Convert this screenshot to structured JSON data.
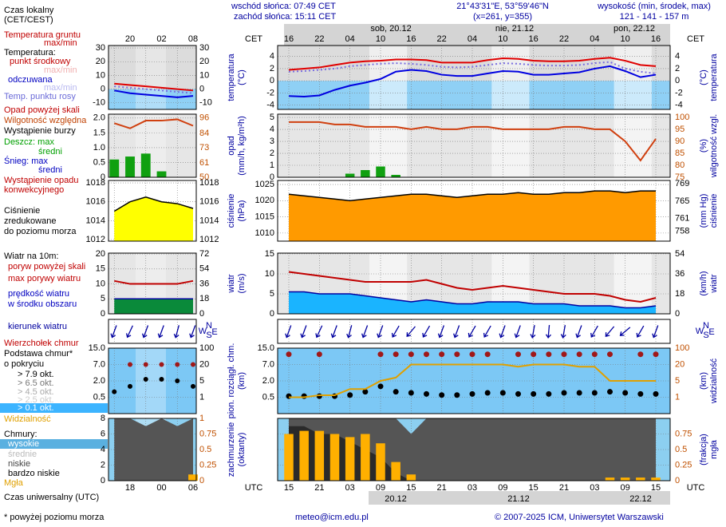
{
  "header": {
    "sunrise": "wschód słońca: 07:49 CET",
    "sunset": "zachód słońca: 15:11 CET",
    "coords": "21°43'31\"E, 53°59'46\"N",
    "grid_point": "(x=261, y=355)",
    "height_title": "wysokość (min, środek, max)",
    "height_values": "121 - 141 - 157 m"
  },
  "time_axis": {
    "cet": "CET",
    "utc": "UTC",
    "days_top": [
      "sob, 20.12",
      "nie, 21.12",
      "pon, 22.12"
    ],
    "days_bottom": [
      "20.12",
      "21.12",
      "22.12"
    ]
  },
  "compass": {
    "n": "N",
    "w": "W",
    "s": "S",
    "e": "E"
  },
  "legend": [
    "Czas lokalny",
    "(CET/CEST)",
    "Temperatura gruntu",
    "max/min",
    "Temperatura:",
    "punkt środkowy",
    "max/min",
    "odczuwana",
    "max/min",
    "Temp. punktu rosy",
    "Opad powyżej skali",
    "Wilgotność względna",
    "Wystąpienie burzy",
    "Deszcz: max",
    "średni",
    "Śnieg: max",
    "średni",
    "Wystąpienie opadu",
    "konwekcyjnego",
    "Ciśnienie",
    "zredukowane",
    "do poziomu morza",
    "Wiatr na 10m:",
    "poryw powyżej skali",
    "max porywy wiatru",
    "prędkość wiatru",
    "w środku obszaru",
    "kierunek wiatru",
    "Wierzchołek chmur",
    "Podstawa chmur*",
    "o pokryciu",
    "> 7.9 okt.",
    "> 6.5 okt.",
    "> 4.5 okt.",
    "> 2.5 okt.",
    "> 0.1 okt.",
    "Widzialność",
    "Chmury:",
    "wysokie",
    "średnie",
    "niskie",
    "bardzo niskie",
    "Mgła",
    "Czas uniwersalny (UTC)",
    "* powyżej poziomu morza"
  ],
  "footer": {
    "email": "meteo@icm.edu.pl",
    "copyright": "© 2007-2025 ICM, Uniwersytet Warszawski"
  },
  "chart_data": [
    {
      "type": "line",
      "ylabel": [
        "temperatura",
        "(°C)"
      ],
      "y2label": [
        "(°C)",
        "temperatura"
      ],
      "categories": [
        "16",
        null,
        "22",
        null,
        "04",
        null,
        "10",
        null,
        "16",
        null,
        "22",
        null,
        "04",
        null,
        "10",
        null,
        "16",
        null,
        "22",
        null,
        "04",
        null,
        "10",
        null,
        "16"
      ],
      "ylim": [
        -4.7,
        5.8
      ],
      "yticks": [
        4,
        2,
        0,
        -2,
        -4
      ],
      "y2lim": [
        -4.7,
        5.8
      ],
      "y2ticks": [
        4,
        2,
        0,
        -2,
        -4
      ],
      "grid": true,
      "series": [
        {
          "type": "line",
          "color": "#0000e0",
          "values": [
            -2.5,
            -2.6,
            -2.4,
            -1.5,
            -0.8,
            -0.3,
            0.3,
            1.5,
            1.8,
            1.6,
            1.0,
            0.8,
            0.8,
            1.2,
            1.6,
            1.5,
            1.0,
            1.0,
            1.2,
            1.4,
            2.0,
            2.4,
            1.6,
            0.6,
            1.0
          ]
        },
        {
          "type": "line",
          "color": "#7a6ee0",
          "dash": true,
          "values": [
            1.5,
            1.6,
            1.8,
            2.0,
            2.4,
            2.6,
            2.8,
            2.9,
            2.8,
            2.6,
            2.3,
            2.2,
            2.3,
            2.6,
            2.9,
            2.8,
            2.6,
            2.5,
            2.5,
            2.6,
            2.9,
            3.1,
            2.0,
            1.5,
            1.2
          ]
        },
        {
          "type": "line",
          "color": "#e00000",
          "values": [
            1.8,
            2.0,
            2.2,
            2.6,
            3.0,
            3.2,
            3.3,
            3.5,
            3.5,
            3.4,
            3.0,
            3.0,
            3.0,
            3.4,
            3.7,
            3.6,
            3.3,
            3.2,
            3.2,
            3.3,
            3.6,
            3.8,
            3.3,
            2.6,
            2.4
          ]
        }
      ]
    },
    {
      "type": "line",
      "ylabel": [
        "opad",
        "(mm/h, kg/m²h)"
      ],
      "y2label": [
        "(%)",
        "wilgotność wzgl."
      ],
      "ylim": [
        0,
        5.27
      ],
      "yticks": [
        5,
        4,
        3,
        2,
        1,
        0
      ],
      "y2lim": [
        75,
        101.3
      ],
      "y2ticks": [
        100,
        95,
        90,
        85,
        80,
        75
      ],
      "grid": true,
      "series": [
        {
          "type": "bar",
          "color": "#10a010",
          "values": [
            0,
            0,
            0,
            0,
            0.3,
            0.6,
            0.9,
            0.2,
            0,
            0,
            0,
            0,
            0,
            0,
            0,
            0,
            0,
            0,
            0,
            0,
            0,
            0,
            0,
            0,
            0
          ]
        },
        {
          "type": "line",
          "color": "#d04010",
          "axis": "y2",
          "values": [
            98,
            98,
            98,
            97,
            97,
            96,
            96,
            96,
            95,
            96,
            95,
            95,
            96,
            96,
            95,
            95,
            95,
            95,
            96,
            96,
            95,
            95,
            90,
            82,
            91
          ]
        }
      ]
    },
    {
      "type": "line",
      "ylabel": [
        "ciśnienie",
        "(hPa)"
      ],
      "y2label": [
        "(mm Hg)",
        "ciśnienie"
      ],
      "ylim": [
        1007.5,
        1026.25
      ],
      "yticks": [
        1025,
        1020,
        1015,
        1010
      ],
      "y2lim": [
        755.7,
        769.8
      ],
      "y2ticks": [
        769,
        765,
        761,
        758
      ],
      "grid": true,
      "series": [
        {
          "type": "area",
          "color": "#ff9a00",
          "stroke": "#000000",
          "values": [
            1022,
            1021.5,
            1021,
            1020.5,
            1020,
            1020.5,
            1021,
            1021.5,
            1022,
            1022,
            1021.5,
            1021,
            1021.5,
            1022,
            1022,
            1022.5,
            1022,
            1022,
            1022.5,
            1022.5,
            1023,
            1023,
            1022.5,
            1023,
            1023
          ]
        }
      ]
    },
    {
      "type": "line",
      "ylabel": [
        "wiatr",
        "(m/s)"
      ],
      "y2label": [
        "(km/h)",
        "wiatr"
      ],
      "ylim": [
        0,
        15.2
      ],
      "yticks": [
        15,
        10,
        5,
        0
      ],
      "y2lim": [
        0,
        54.72
      ],
      "y2ticks": [
        54,
        36,
        18,
        0
      ],
      "grid": true,
      "series": [
        {
          "type": "area",
          "color": "#1ab4ff",
          "stroke": "#0000a0",
          "values": [
            5.5,
            5.5,
            5,
            5,
            5,
            4.5,
            4,
            3.5,
            3,
            3.5,
            3,
            2.5,
            2.5,
            3,
            3,
            3,
            2.5,
            2.5,
            2.5,
            2,
            2,
            2,
            1.5,
            1.5,
            2
          ]
        },
        {
          "type": "line",
          "color": "#c00000",
          "values": [
            10.5,
            10,
            9.5,
            9,
            8.5,
            8,
            8,
            8,
            8,
            8.5,
            7.5,
            6.5,
            6,
            6.5,
            7,
            6.5,
            6,
            5.5,
            5,
            5,
            5,
            4.5,
            3.5,
            3,
            4
          ]
        }
      ]
    },
    {
      "type": "arrows",
      "series": [
        {
          "type": "arrows",
          "color": "#0000a0",
          "values": [
            20,
            20,
            25,
            20,
            15,
            20,
            20,
            30,
            40,
            30,
            20,
            20,
            30,
            30,
            20,
            20,
            10,
            5,
            10,
            20,
            30,
            40,
            50,
            30,
            20
          ]
        }
      ]
    },
    {
      "type": "line",
      "ylabel": [
        "pion. rozciągł. chm.",
        "(km)"
      ],
      "y2label": [
        "(km)",
        "widzialność"
      ],
      "yscale": "uneven",
      "ylim": [
        0,
        15
      ],
      "yticks": [
        {
          "value": 15,
          "label": "15.0"
        },
        {
          "value": 7,
          "label": "7.0"
        },
        {
          "value": 2,
          "label": "2.0"
        },
        0.5
      ],
      "y2lim": [
        0,
        100
      ],
      "y2ticks": [
        100,
        20,
        5,
        1
      ],
      "grid": true,
      "series": [
        {
          "type": "dots",
          "color": "#a01818",
          "values": [
            12,
            null,
            12,
            null,
            null,
            null,
            12,
            12,
            12,
            12,
            12,
            12,
            12,
            12,
            null,
            12,
            12,
            12,
            12,
            12,
            12,
            12,
            null,
            12,
            12
          ]
        },
        {
          "type": "dots",
          "color": "#000000",
          "values": [
            0.6,
            0.6,
            0.6,
            0.6,
            0.7,
            1.0,
            1.5,
            1.0,
            0.9,
            0.8,
            0.7,
            0.7,
            0.8,
            0.9,
            0.9,
            0.8,
            0.8,
            0.8,
            0.9,
            0.9,
            0.9,
            1.0,
            0.9,
            0.8,
            0.8
          ]
        },
        {
          "type": "line",
          "color": "#e0a000",
          "axis": "y2",
          "values": [
            1,
            1,
            1.5,
            1.5,
            3,
            3,
            5,
            8,
            20,
            20,
            20,
            20,
            20,
            20,
            20,
            18,
            20,
            20,
            20,
            18,
            18,
            5,
            5,
            5,
            5
          ]
        }
      ]
    },
    {
      "type": "line",
      "ylabel": [
        "zachmurzenie",
        "(oktanty)"
      ],
      "y2label": [
        "(frakcja)",
        "mgła"
      ],
      "categories": [
        "15",
        null,
        "21",
        null,
        "03",
        null,
        "09",
        null,
        "15",
        null,
        "21",
        null,
        "03",
        null,
        "09",
        null,
        "15",
        null,
        "21",
        null,
        "03",
        null,
        "09",
        null,
        "15"
      ],
      "ylim": [
        0,
        8
      ],
      "y2lim": [
        0,
        1
      ],
      "y2ticks": [
        0.75,
        0.5,
        0.25,
        0
      ],
      "grid": true,
      "series": [
        {
          "type": "area",
          "color": "#555555",
          "values": [
            8,
            8,
            8,
            8,
            8,
            8,
            8,
            8,
            6,
            8,
            8,
            8,
            8,
            8,
            8,
            8,
            8,
            8,
            8,
            8,
            8,
            8,
            8,
            8,
            8
          ]
        },
        {
          "type": "area",
          "color": "#2a2a2a",
          "values": [
            7,
            7,
            6,
            6,
            5,
            4,
            3,
            1,
            0,
            0,
            0,
            0,
            0,
            0,
            0,
            0,
            0,
            0,
            0,
            0,
            0,
            0,
            0,
            0,
            0
          ]
        },
        {
          "type": "bar",
          "color": "#ffb000",
          "axis": "y2",
          "values": [
            0.75,
            0.8,
            0.8,
            0.75,
            0.7,
            0.75,
            0.6,
            0.3,
            0.1,
            0,
            0,
            0,
            0,
            0,
            0,
            0,
            0,
            0,
            0,
            0,
            0,
            0.05,
            0.05,
            0.05,
            0.05
          ]
        }
      ]
    },
    {
      "type": "line",
      "categories": [
        null,
        "20",
        null,
        "02",
        null,
        "08"
      ],
      "ylim": [
        -14.8,
        31.8
      ],
      "yticks": [
        30,
        20,
        10,
        0,
        -10
      ],
      "y2lim": [
        -14.8,
        31.8
      ],
      "y2ticks": [
        30,
        20,
        10,
        0,
        -10
      ],
      "grid": true,
      "series": [
        {
          "type": "line",
          "color": "#0000e0",
          "values": [
            -1,
            -3,
            -4,
            -5,
            -6,
            -5
          ]
        },
        {
          "type": "line",
          "color": "#7a6ee0",
          "dash": true,
          "values": [
            2,
            1,
            0,
            -1,
            -2,
            -3
          ]
        },
        {
          "type": "line",
          "color": "#e00000",
          "values": [
            4,
            3,
            2,
            1,
            0,
            -1
          ]
        }
      ]
    },
    {
      "type": "line",
      "ylim": [
        0,
        2.13
      ],
      "yticks": [
        {
          "value": 2,
          "label": "2.0"
        },
        1.5,
        {
          "value": 1,
          "label": "1.0"
        },
        0.5,
        0
      ],
      "y2lim": [
        50,
        99
      ],
      "y2ticks": [
        96,
        84,
        73,
        61,
        50
      ],
      "grid": true,
      "series": [
        {
          "type": "bar",
          "color": "#10a010",
          "values": [
            0.6,
            0.7,
            0.8,
            0.2,
            0,
            0
          ]
        },
        {
          "type": "line",
          "color": "#d04010",
          "axis": "y2",
          "values": [
            92,
            88,
            94,
            94,
            95,
            90
          ]
        }
      ]
    },
    {
      "type": "line",
      "ylim": [
        1011.83,
        1018.26
      ],
      "yticks": [
        1018,
        1016,
        1014,
        1012
      ],
      "y2lim": [
        1011.83,
        1018.26
      ],
      "y2ticks": [
        1018,
        1016,
        1014,
        1012
      ],
      "grid": true,
      "series": [
        {
          "type": "area",
          "color": "#ffff00",
          "stroke": "#000000",
          "values": [
            1015,
            1016,
            1016.5,
            1016,
            1015.8,
            1015.3
          ]
        }
      ]
    },
    {
      "type": "line",
      "ylim": [
        0,
        20.3
      ],
      "yticks": [
        20,
        15,
        10,
        5,
        0
      ],
      "y2lim": [
        0,
        73.08
      ],
      "y2ticks": [
        72,
        54,
        36,
        18,
        0
      ],
      "grid": true,
      "series": [
        {
          "type": "area",
          "color": "#0a8a3a",
          "stroke": "#0000a0",
          "values": [
            5,
            5,
            5,
            5,
            5,
            5
          ]
        },
        {
          "type": "line",
          "color": "#c00000",
          "values": [
            11,
            10,
            10,
            10,
            10,
            11
          ]
        }
      ]
    },
    {
      "type": "arrows",
      "series": [
        {
          "type": "arrows",
          "color": "#0000a0",
          "values": [
            20,
            25,
            20,
            20,
            15,
            20
          ]
        }
      ]
    },
    {
      "type": "line",
      "yscale": "uneven",
      "ylim": [
        0,
        15
      ],
      "yticks": [
        {
          "value": 15,
          "label": "15.0"
        },
        {
          "value": 7,
          "label": "7.0"
        },
        {
          "value": 2,
          "label": "2.0"
        },
        0.5
      ],
      "y2lim": [
        0,
        100
      ],
      "y2ticks": [
        100,
        20,
        5,
        1
      ],
      "grid": true,
      "series": [
        {
          "type": "dots",
          "color": "#a01818",
          "values": [
            null,
            7,
            7,
            7,
            7,
            7
          ]
        },
        {
          "type": "dots",
          "color": "#000000",
          "values": [
            1,
            1.5,
            2.5,
            2.5,
            2.0,
            1.5
          ]
        }
      ]
    },
    {
      "type": "line",
      "categories": [
        null,
        "18",
        null,
        "00",
        null,
        "06"
      ],
      "ylim": [
        0,
        8
      ],
      "yticks": [
        8,
        6,
        4,
        2,
        0
      ],
      "y2lim": [
        0,
        1
      ],
      "y2ticks": [
        1,
        0.75,
        0.5,
        0.25,
        0
      ],
      "grid": true,
      "series": [
        {
          "type": "area",
          "color": "#555555",
          "values": [
            8,
            8,
            7,
            8,
            7,
            8
          ]
        },
        {
          "type": "bar",
          "color": "#ffb000",
          "axis": "y2",
          "values": [
            0,
            0,
            0,
            0,
            0,
            0.1
          ]
        }
      ]
    }
  ]
}
